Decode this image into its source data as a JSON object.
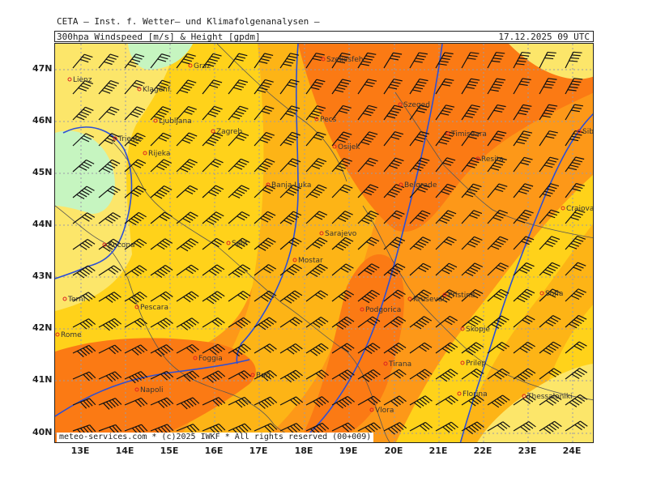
{
  "header": {
    "title": "CETA – Inst. f. Wetter– und Klimafolgenanalysen –",
    "product": "300hpa_Windspeed_[m/s]_&_Height_[gpdm]",
    "valid_time": "17.12.2025 09 UTC"
  },
  "footer": {
    "credit": "meteo-services.com * (c)2025 IWKF * All rights reserved (00+009)"
  },
  "axes": {
    "latitudes": [
      "47N",
      "46N",
      "45N",
      "44N",
      "43N",
      "42N",
      "41N",
      "40N"
    ],
    "longitudes": [
      "13E",
      "14E",
      "15E",
      "16E",
      "17E",
      "18E",
      "19E",
      "20E",
      "21E",
      "22E",
      "23E",
      "24E"
    ]
  },
  "cities": [
    {
      "name": "Graz"
    },
    {
      "name": "Lienz"
    },
    {
      "name": "Klagenf."
    },
    {
      "name": "Ljubljana"
    },
    {
      "name": "Zagreb"
    },
    {
      "name": "Trieste"
    },
    {
      "name": "Rijeka"
    },
    {
      "name": "Szekesfeh."
    },
    {
      "name": "Pecs"
    },
    {
      "name": "Osijek"
    },
    {
      "name": "Szeged"
    },
    {
      "name": "Timisoara"
    },
    {
      "name": "Resita"
    },
    {
      "name": "Sibiu"
    },
    {
      "name": "Banja Luka"
    },
    {
      "name": "Belgrade"
    },
    {
      "name": "Craiova"
    },
    {
      "name": "Sarajevo"
    },
    {
      "name": "Split"
    },
    {
      "name": "Mostar"
    },
    {
      "name": "Ancona"
    },
    {
      "name": "Terni"
    },
    {
      "name": "Pescara"
    },
    {
      "name": "Podgorica"
    },
    {
      "name": "Krusevac"
    },
    {
      "name": "Pristina"
    },
    {
      "name": "Sofia"
    },
    {
      "name": "Rome"
    },
    {
      "name": "Skopje"
    },
    {
      "name": "Foggia"
    },
    {
      "name": "Tirana"
    },
    {
      "name": "Prilep"
    },
    {
      "name": "Napoli"
    },
    {
      "name": "Bari"
    },
    {
      "name": "Florina"
    },
    {
      "name": "Thessaloniki"
    },
    {
      "name": "Vlora"
    }
  ],
  "colors": {
    "zone_lightgreen": "#c6f5c0",
    "zone_yellow": "#fce66a",
    "zone_gold": "#ffd21a",
    "zone_orange1": "#fdb416",
    "zone_orange2": "#fd9818",
    "zone_darkorange": "#fb7a14",
    "contour": "#2c4fd6",
    "grid": "#9a9aa8",
    "coast": "#555555"
  }
}
